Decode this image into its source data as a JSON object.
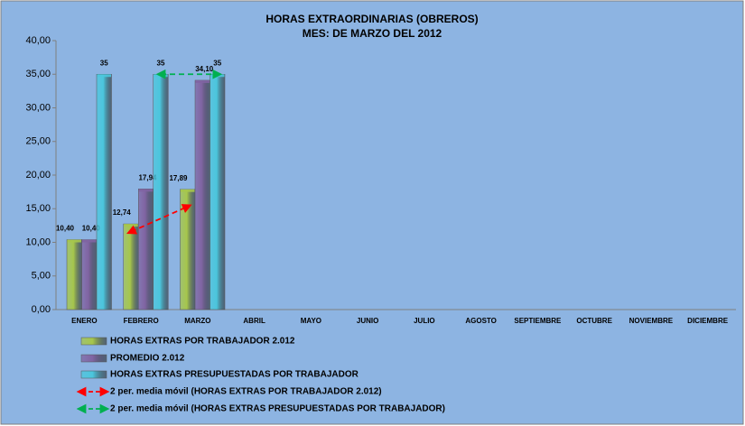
{
  "chart_data": {
    "type": "bar",
    "title": "HORAS EXTRAORDINARIAS (OBREROS)",
    "subtitle": "MES: DE MARZO DEL 2012",
    "categories": [
      "ENERO",
      "FEBRERO",
      "MARZO",
      "ABRIL",
      "MAYO",
      "JUNIO",
      "JULIO",
      "AGOSTO",
      "SEPTIEMBRE",
      "OCTUBRE",
      "NOVIEMBRE",
      "DICIEMBRE"
    ],
    "series": [
      {
        "name": "HORAS EXTRAS POR TRABAJADOR 2.012",
        "color": "#a6c64c",
        "values": [
          10.4,
          12.74,
          17.89,
          null,
          null,
          null,
          null,
          null,
          null,
          null,
          null,
          null
        ],
        "value_labels": [
          "10,40",
          "12,74",
          "17,89",
          null,
          null,
          null,
          null,
          null,
          null,
          null,
          null,
          null
        ]
      },
      {
        "name": "PROMEDIO 2.012",
        "color": "#8064a2",
        "values": [
          10.4,
          17.94,
          34.1,
          null,
          null,
          null,
          null,
          null,
          null,
          null,
          null,
          null
        ],
        "value_labels": [
          "10,40",
          "17,94",
          "34,10",
          null,
          null,
          null,
          null,
          null,
          null,
          null,
          null,
          null
        ]
      },
      {
        "name": "HORAS EXTRAS PRESUPUESTADAS POR TRABAJADOR",
        "color": "#4bc6dd",
        "values": [
          35,
          35,
          35,
          null,
          null,
          null,
          null,
          null,
          null,
          null,
          null,
          null
        ]
      }
    ],
    "trendlines": [
      {
        "name": "2 per. media móvil (HORAS EXTRAS POR TRABAJADOR 2.012)",
        "color": "#ff0000",
        "values": [
          null,
          11.57,
          15.32,
          null,
          null,
          null,
          null,
          null,
          null,
          null,
          null,
          null
        ]
      },
      {
        "name": "2 per. media móvil (HORAS EXTRAS PRESUPUESTADAS POR TRABAJADOR)",
        "color": "#00b050",
        "values": [
          null,
          35,
          35,
          null,
          null,
          null,
          null,
          null,
          null,
          null,
          null,
          null
        ]
      }
    ],
    "ylim": [
      0,
      40
    ],
    "yticks": [
      {
        "value": 0,
        "label": "0,00"
      },
      {
        "value": 5,
        "label": "5,00"
      },
      {
        "value": 10,
        "label": "10,00"
      },
      {
        "value": 15,
        "label": "15,00"
      },
      {
        "value": 20,
        "label": "20,00"
      },
      {
        "value": 25,
        "label": "25,00"
      },
      {
        "value": 30,
        "label": "30,00"
      },
      {
        "value": 35,
        "label": "35,00"
      },
      {
        "value": 40,
        "label": "40,00"
      }
    ],
    "grid": false
  }
}
